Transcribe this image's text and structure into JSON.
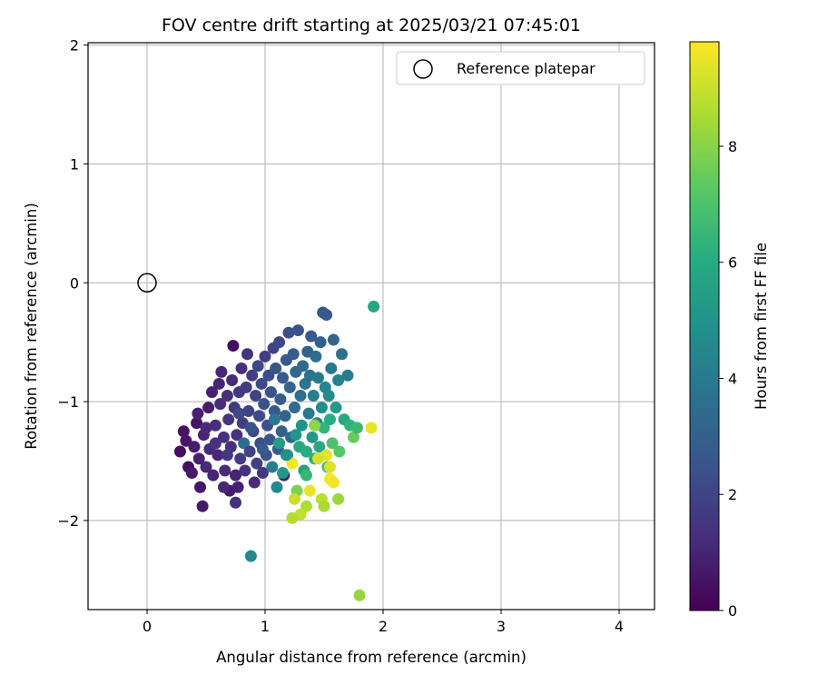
{
  "chart_data": {
    "type": "scatter",
    "title": "FOV centre drift starting at 2025/03/21 07:45:01",
    "xlabel": "Angular distance from reference (arcmin)",
    "ylabel": "Rotation from reference (arcmin)",
    "xlim": [
      -0.5,
      4.3
    ],
    "ylim": [
      -2.75,
      2.02
    ],
    "xticks": [
      0,
      1,
      2,
      3,
      4
    ],
    "yticks": [
      -2,
      -1,
      0,
      1,
      2
    ],
    "grid": true,
    "legend": {
      "placement": "top-right",
      "entries": [
        "Reference platepar"
      ]
    },
    "colorbar": {
      "label": "Hours from first FF file",
      "range": [
        0,
        9.8
      ],
      "ticks": [
        0,
        2,
        4,
        6,
        8
      ],
      "colormap": "viridis"
    },
    "reference_point": {
      "x": 0,
      "y": 0
    },
    "series": [
      {
        "points": [
          [
            0.28,
            -1.42,
            0.3
          ],
          [
            0.31,
            -1.25,
            0.5
          ],
          [
            0.33,
            -1.33,
            0.6
          ],
          [
            0.35,
            -1.55,
            0.4
          ],
          [
            0.38,
            -1.6,
            0.7
          ],
          [
            0.4,
            -1.38,
            0.8
          ],
          [
            0.42,
            -1.18,
            0.5
          ],
          [
            0.44,
            -1.48,
            0.9
          ],
          [
            0.45,
            -1.72,
            0.6
          ],
          [
            0.47,
            -1.88,
            0.7
          ],
          [
            0.48,
            -1.28,
            1.0
          ],
          [
            0.5,
            -1.55,
            1.1
          ],
          [
            0.52,
            -1.05,
            0.8
          ],
          [
            0.53,
            -1.4,
            1.2
          ],
          [
            0.55,
            -0.92,
            0.9
          ],
          [
            0.56,
            -1.62,
            1.0
          ],
          [
            0.58,
            -1.2,
            1.3
          ],
          [
            0.6,
            -1.45,
            1.1
          ],
          [
            0.61,
            -0.85,
            1.0
          ],
          [
            0.62,
            -1.02,
            1.2
          ],
          [
            0.63,
            -0.75,
            1.1
          ],
          [
            0.65,
            -1.3,
            1.4
          ],
          [
            0.66,
            -1.58,
            1.2
          ],
          [
            0.68,
            -0.95,
            1.3
          ],
          [
            0.69,
            -1.15,
            1.5
          ],
          [
            0.7,
            -1.75,
            0.7
          ],
          [
            0.71,
            -1.38,
            1.4
          ],
          [
            0.72,
            -0.82,
            1.2
          ],
          [
            0.73,
            -0.53,
            0.4
          ],
          [
            0.74,
            -1.05,
            1.6
          ],
          [
            0.75,
            -1.62,
            1.0
          ],
          [
            0.76,
            -1.28,
            1.5
          ],
          [
            0.77,
            -1.72,
            0.9
          ],
          [
            0.78,
            -0.92,
            1.6
          ],
          [
            0.79,
            -1.48,
            1.7
          ],
          [
            0.8,
            -0.72,
            1.3
          ],
          [
            0.81,
            -1.18,
            1.8
          ],
          [
            0.82,
            -1.35,
            3.5
          ],
          [
            0.83,
            -1.58,
            1.4
          ],
          [
            0.84,
            -0.88,
            1.7
          ],
          [
            0.85,
            -0.6,
            1.5
          ],
          [
            0.86,
            -1.08,
            1.9
          ],
          [
            0.87,
            -1.42,
            2.0
          ],
          [
            0.88,
            -2.3,
            4.5
          ],
          [
            0.89,
            -0.78,
            1.8
          ],
          [
            0.9,
            -1.25,
            2.1
          ],
          [
            0.91,
            -1.68,
            1.2
          ],
          [
            0.92,
            -0.95,
            2.0
          ],
          [
            0.93,
            -1.52,
            1.9
          ],
          [
            0.94,
            -0.7,
            2.1
          ],
          [
            0.95,
            -1.12,
            2.2
          ],
          [
            0.96,
            -1.35,
            2.3
          ],
          [
            0.97,
            -0.85,
            2.2
          ],
          [
            0.98,
            -1.6,
            1.6
          ],
          [
            0.99,
            -1.02,
            2.4
          ],
          [
            1.0,
            -0.62,
            1.8
          ],
          [
            1.01,
            -1.45,
            2.5
          ],
          [
            1.02,
            -1.2,
            2.4
          ],
          [
            1.03,
            -0.78,
            2.3
          ],
          [
            1.04,
            -1.32,
            2.6
          ],
          [
            1.05,
            -0.92,
            2.5
          ],
          [
            1.06,
            -1.55,
            4.2
          ],
          [
            1.07,
            -0.55,
            2.0
          ],
          [
            1.08,
            -1.08,
            2.7
          ],
          [
            1.09,
            -0.72,
            2.6
          ],
          [
            1.1,
            -1.72,
            4.6
          ],
          [
            1.11,
            -1.4,
            2.8
          ],
          [
            1.12,
            -0.5,
            2.1
          ],
          [
            1.13,
            -0.98,
            2.9
          ],
          [
            1.14,
            -1.25,
            3.0
          ],
          [
            1.15,
            -0.8,
            2.8
          ],
          [
            1.16,
            -1.62,
            0.8
          ],
          [
            1.17,
            -1.12,
            3.1
          ],
          [
            1.18,
            -0.65,
            2.7
          ],
          [
            1.19,
            -1.45,
            5.5
          ],
          [
            1.2,
            -0.42,
            2.3
          ],
          [
            1.21,
            -0.88,
            3.2
          ],
          [
            1.22,
            -1.3,
            3.3
          ],
          [
            1.23,
            -1.52,
            9.6
          ],
          [
            1.24,
            -0.6,
            2.9
          ],
          [
            1.25,
            -1.05,
            3.4
          ],
          [
            1.26,
            -0.75,
            3.3
          ],
          [
            1.27,
            -1.75,
            7.8
          ],
          [
            1.28,
            -0.4,
            2.5
          ],
          [
            1.29,
            -1.38,
            5.8
          ],
          [
            1.3,
            -0.95,
            3.6
          ],
          [
            1.31,
            -1.2,
            5.0
          ],
          [
            1.32,
            -0.7,
            3.4
          ],
          [
            1.33,
            -1.58,
            5.6
          ],
          [
            1.34,
            -0.85,
            3.8
          ],
          [
            1.35,
            -1.42,
            6.0
          ],
          [
            1.36,
            -0.58,
            3.1
          ],
          [
            1.37,
            -1.1,
            4.0
          ],
          [
            1.38,
            -0.78,
            3.7
          ],
          [
            1.39,
            -0.45,
            2.8
          ],
          [
            1.4,
            -1.3,
            5.2
          ],
          [
            1.41,
            -0.95,
            4.2
          ],
          [
            1.42,
            -1.48,
            6.2
          ],
          [
            1.43,
            -0.62,
            3.5
          ],
          [
            1.44,
            -1.18,
            4.6
          ],
          [
            1.45,
            -0.8,
            4.0
          ],
          [
            1.46,
            -1.38,
            5.9
          ],
          [
            1.47,
            -0.5,
            3.0
          ],
          [
            1.48,
            -1.05,
            4.8
          ],
          [
            1.49,
            -0.25,
            2.6
          ],
          [
            1.5,
            -1.22,
            6.4
          ],
          [
            1.51,
            -0.88,
            4.4
          ],
          [
            1.52,
            -0.27,
            2.7
          ],
          [
            1.53,
            -1.55,
            6.8
          ],
          [
            1.54,
            -0.95,
            4.7
          ],
          [
            1.55,
            -1.15,
            6.1
          ],
          [
            1.56,
            -0.72,
            3.9
          ],
          [
            1.57,
            -1.35,
            7.0
          ],
          [
            1.58,
            -0.48,
            3.2
          ],
          [
            1.6,
            -1.05,
            5.3
          ],
          [
            1.62,
            -0.82,
            4.3
          ],
          [
            1.63,
            -1.42,
            7.2
          ],
          [
            1.65,
            -0.6,
            3.6
          ],
          [
            1.67,
            -1.15,
            5.8
          ],
          [
            1.7,
            -0.78,
            4.1
          ],
          [
            1.72,
            -1.2,
            6.3
          ],
          [
            1.75,
            -1.3,
            7.5
          ],
          [
            1.78,
            -1.22,
            6.6
          ],
          [
            1.92,
            -0.2,
            5.7
          ],
          [
            1.8,
            -2.63,
            8.2
          ],
          [
            1.9,
            -1.22,
            9.5
          ],
          [
            1.55,
            -1.65,
            9.7
          ],
          [
            1.58,
            -1.68,
            9.6
          ],
          [
            1.52,
            -1.45,
            9.4
          ],
          [
            1.48,
            -1.82,
            8.8
          ],
          [
            1.5,
            -1.88,
            8.5
          ],
          [
            1.62,
            -1.82,
            8.3
          ],
          [
            1.35,
            -1.88,
            8.6
          ],
          [
            1.3,
            -1.95,
            8.9
          ],
          [
            1.23,
            -1.98,
            8.7
          ],
          [
            1.42,
            -1.2,
            8.1
          ],
          [
            1.55,
            -1.55,
            9.3
          ],
          [
            1.38,
            -1.75,
            9.5
          ],
          [
            1.25,
            -1.82,
            9.0
          ],
          [
            1.45,
            -1.48,
            9.2
          ],
          [
            1.18,
            -1.45,
            4.9
          ],
          [
            1.12,
            -1.35,
            5.4
          ],
          [
            1.26,
            -1.28,
            5.1
          ],
          [
            1.15,
            -1.6,
            5.2
          ],
          [
            1.35,
            -1.62,
            6.5
          ],
          [
            1.08,
            -1.15,
            3.9
          ],
          [
            0.98,
            -1.4,
            2.8
          ],
          [
            0.88,
            -1.22,
            2.5
          ],
          [
            0.78,
            -1.1,
            2.2
          ],
          [
            0.68,
            -1.45,
            1.6
          ],
          [
            0.58,
            -1.35,
            1.4
          ],
          [
            0.5,
            -1.22,
            1.2
          ],
          [
            0.43,
            -1.1,
            0.9
          ],
          [
            0.65,
            -1.72,
            1.1
          ],
          [
            0.75,
            -1.85,
            1.3
          ]
        ]
      }
    ]
  }
}
